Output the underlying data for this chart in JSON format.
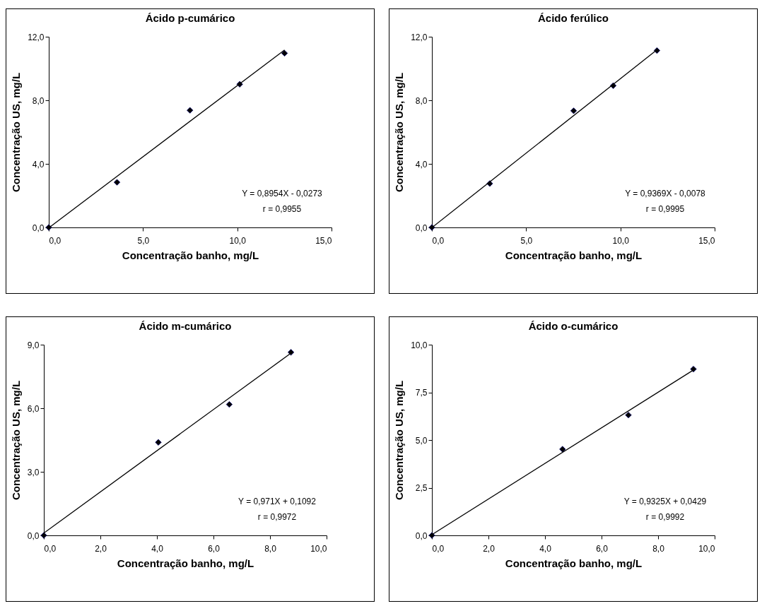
{
  "chart_data": [
    {
      "type": "scatter",
      "title": "Ácido p-cumárico",
      "xlabel": "Concentração banho, mg/L",
      "ylabel": "Concentração US, mg/L",
      "xlim": [
        0,
        15
      ],
      "ylim": [
        0,
        12
      ],
      "xticks": [
        {
          "value": 0,
          "label": "0,0"
        },
        {
          "value": 5,
          "label": "5,0"
        },
        {
          "value": 10,
          "label": "10,0"
        },
        {
          "value": 15,
          "label": "15,0"
        }
      ],
      "yticks": [
        {
          "value": 0,
          "label": "0,0"
        },
        {
          "value": 4,
          "label": "4,0"
        },
        {
          "value": 8,
          "label": "8,0"
        },
        {
          "value": 12,
          "label": "12,0"
        }
      ],
      "series": [
        {
          "color": "#000000",
          "marker": "diamond",
          "x": [
            0,
            3.62,
            7.49,
            10.13,
            12.51
          ],
          "values": [
            0,
            2.84,
            7.37,
            9.01,
            10.96
          ]
        },
        {
          "type": "line",
          "color": "#000000",
          "x": [
            0.03,
            12.51
          ],
          "values": [
            0,
            11.17
          ]
        }
      ],
      "annotations": [
        "Y = 0,8954X - 0,0273",
        "r = 0,9955"
      ],
      "grid": false
    },
    {
      "type": "scatter",
      "title": "Ácido ferúlico",
      "xlabel": "Concentração banho, mg/L",
      "ylabel": "Concentração US, mg/L",
      "xlim": [
        0,
        15
      ],
      "ylim": [
        0,
        12
      ],
      "xticks": [
        {
          "value": 0,
          "label": "0,0"
        },
        {
          "value": 5,
          "label": "5,0"
        },
        {
          "value": 10,
          "label": "10,0"
        },
        {
          "value": 15,
          "label": "15,0"
        }
      ],
      "yticks": [
        {
          "value": 0,
          "label": "0,0"
        },
        {
          "value": 4,
          "label": "4,0"
        },
        {
          "value": 8,
          "label": "8,0"
        },
        {
          "value": 12,
          "label": "12,0"
        }
      ],
      "series": [
        {
          "color": "#000000",
          "marker": "diamond",
          "x": [
            0,
            3.07,
            7.52,
            9.62,
            11.94
          ],
          "values": [
            0,
            2.76,
            7.34,
            8.92,
            11.13
          ]
        },
        {
          "type": "line",
          "color": "#000000",
          "x": [
            0.01,
            11.94
          ],
          "values": [
            0,
            11.18
          ]
        }
      ],
      "annotations": [
        "Y = 0,9369X - 0,0078",
        "r = 0,9995"
      ],
      "grid": false
    },
    {
      "type": "scatter",
      "title": "Ácido m-cumárico",
      "xlabel": "Concentração banho, mg/L",
      "ylabel": "Concentração US, mg/L",
      "xlim": [
        0,
        10
      ],
      "ylim": [
        0,
        9
      ],
      "xticks": [
        {
          "value": 0,
          "label": "0,0"
        },
        {
          "value": 2,
          "label": "2,0"
        },
        {
          "value": 4,
          "label": "4,0"
        },
        {
          "value": 6,
          "label": "6,0"
        },
        {
          "value": 8,
          "label": "8,0"
        },
        {
          "value": 10,
          "label": "10,0"
        }
      ],
      "yticks": [
        {
          "value": 0,
          "label": "0,0"
        },
        {
          "value": 3,
          "label": "3,0"
        },
        {
          "value": 6,
          "label": "6,0"
        },
        {
          "value": 9,
          "label": "9,0"
        }
      ],
      "series": [
        {
          "color": "#000000",
          "marker": "diamond",
          "x": [
            0,
            4.05,
            6.56,
            8.74
          ],
          "values": [
            0,
            4.39,
            6.18,
            8.64
          ]
        },
        {
          "type": "line",
          "color": "#000000",
          "x": [
            0,
            8.74
          ],
          "values": [
            0.11,
            8.6
          ]
        }
      ],
      "annotations": [
        "Y = 0,971X + 0,1092",
        "r = 0,9972"
      ],
      "grid": false
    },
    {
      "type": "scatter",
      "title": "Ácido o-cumárico",
      "xlabel": "Concentração banho, mg/L",
      "ylabel": "Concentração US, mg/L",
      "xlim": [
        0,
        10
      ],
      "ylim": [
        0,
        10
      ],
      "xticks": [
        {
          "value": 0,
          "label": "0,0"
        },
        {
          "value": 2,
          "label": "2,0"
        },
        {
          "value": 4,
          "label": "4,0"
        },
        {
          "value": 6,
          "label": "6,0"
        },
        {
          "value": 8,
          "label": "8,0"
        },
        {
          "value": 10,
          "label": "10,0"
        }
      ],
      "yticks": [
        {
          "value": 0,
          "label": "0,0"
        },
        {
          "value": 2.5,
          "label": "2,5"
        },
        {
          "value": 5,
          "label": "5,0"
        },
        {
          "value": 7.5,
          "label": "7,5"
        },
        {
          "value": 10,
          "label": "10,0"
        }
      ],
      "series": [
        {
          "color": "#000000",
          "marker": "diamond",
          "x": [
            0,
            4.62,
            6.95,
            9.25
          ],
          "values": [
            0,
            4.52,
            6.31,
            8.72
          ]
        },
        {
          "type": "line",
          "color": "#000000",
          "x": [
            0,
            9.25
          ],
          "values": [
            0.04,
            8.67
          ]
        }
      ],
      "annotations": [
        "Y = 0,9325X + 0,0429",
        "r = 0,9992"
      ],
      "grid": false
    }
  ]
}
